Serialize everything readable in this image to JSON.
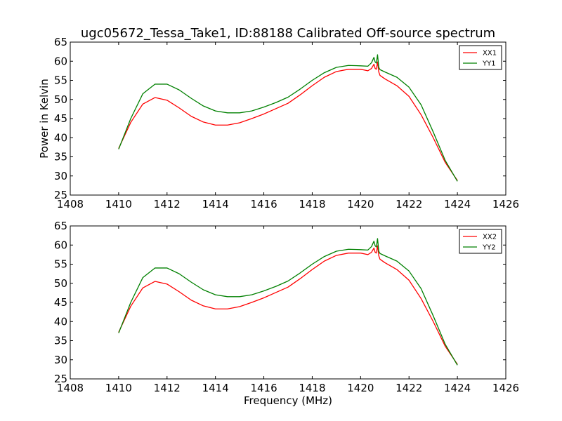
{
  "title": "ugc05672_Tessa_Take1, ID:88188 Calibrated Off-source spectrum",
  "chart_data": [
    {
      "type": "line",
      "ylabel": "Power in Kelvin",
      "xlabel": "",
      "xlim": [
        1408,
        1426
      ],
      "ylim": [
        25,
        65
      ],
      "xticks": [
        1408,
        1410,
        1412,
        1414,
        1416,
        1418,
        1420,
        1422,
        1424,
        1426
      ],
      "yticks": [
        25,
        30,
        35,
        40,
        45,
        50,
        55,
        60,
        65
      ],
      "legend_position": "top-right",
      "series": [
        {
          "name": "XX1",
          "color": "#ff0000",
          "x": [
            1410.0,
            1410.5,
            1411.0,
            1411.5,
            1412.0,
            1412.5,
            1413.0,
            1413.5,
            1414.0,
            1414.5,
            1415.0,
            1415.5,
            1416.0,
            1416.5,
            1417.0,
            1417.5,
            1418.0,
            1418.5,
            1419.0,
            1419.5,
            1420.0,
            1420.3,
            1420.45,
            1420.55,
            1420.6,
            1420.65,
            1420.7,
            1420.75,
            1420.8,
            1421.0,
            1421.5,
            1422.0,
            1422.5,
            1423.0,
            1423.5,
            1424.0
          ],
          "y": [
            37.2,
            44.0,
            48.8,
            50.5,
            49.8,
            47.8,
            45.6,
            44.1,
            43.3,
            43.3,
            43.9,
            45.0,
            46.2,
            47.6,
            49.0,
            51.2,
            53.6,
            55.8,
            57.3,
            57.9,
            57.9,
            57.5,
            58.1,
            59.2,
            58.1,
            57.9,
            59.8,
            57.2,
            56.3,
            55.4,
            53.6,
            50.8,
            46.0,
            40.0,
            33.5,
            28.8
          ]
        },
        {
          "name": "YY1",
          "color": "#008000",
          "x": [
            1410.0,
            1410.5,
            1411.0,
            1411.5,
            1412.0,
            1412.5,
            1413.0,
            1413.5,
            1414.0,
            1414.5,
            1415.0,
            1415.5,
            1416.0,
            1416.5,
            1417.0,
            1417.5,
            1418.0,
            1418.5,
            1419.0,
            1419.5,
            1420.0,
            1420.3,
            1420.45,
            1420.55,
            1420.6,
            1420.65,
            1420.7,
            1420.75,
            1420.8,
            1421.0,
            1421.5,
            1422.0,
            1422.5,
            1423.0,
            1423.5,
            1424.0
          ],
          "y": [
            37.0,
            45.0,
            51.5,
            54.0,
            54.0,
            52.5,
            50.3,
            48.3,
            47.0,
            46.5,
            46.5,
            47.0,
            48.0,
            49.2,
            50.6,
            52.7,
            55.0,
            57.0,
            58.4,
            58.9,
            58.8,
            58.7,
            59.6,
            61.0,
            59.8,
            59.5,
            61.7,
            58.4,
            57.8,
            57.2,
            55.8,
            53.2,
            48.6,
            41.5,
            34.0,
            28.6
          ]
        }
      ]
    },
    {
      "type": "line",
      "ylabel": "",
      "xlabel": "Frequency (MHz)",
      "xlim": [
        1408,
        1426
      ],
      "ylim": [
        25,
        65
      ],
      "xticks": [
        1408,
        1410,
        1412,
        1414,
        1416,
        1418,
        1420,
        1422,
        1424,
        1426
      ],
      "yticks": [
        25,
        30,
        35,
        40,
        45,
        50,
        55,
        60,
        65
      ],
      "legend_position": "top-right",
      "series": [
        {
          "name": "XX2",
          "color": "#ff0000",
          "x": [
            1410.0,
            1410.5,
            1411.0,
            1411.5,
            1412.0,
            1412.5,
            1413.0,
            1413.5,
            1414.0,
            1414.5,
            1415.0,
            1415.5,
            1416.0,
            1416.5,
            1417.0,
            1417.5,
            1418.0,
            1418.5,
            1419.0,
            1419.5,
            1420.0,
            1420.3,
            1420.45,
            1420.55,
            1420.6,
            1420.65,
            1420.7,
            1420.75,
            1420.8,
            1421.0,
            1421.5,
            1422.0,
            1422.5,
            1423.0,
            1423.5,
            1424.0
          ],
          "y": [
            37.2,
            44.0,
            48.8,
            50.5,
            49.8,
            47.8,
            45.6,
            44.1,
            43.3,
            43.3,
            43.9,
            45.0,
            46.2,
            47.6,
            49.0,
            51.2,
            53.6,
            55.8,
            57.3,
            57.9,
            57.9,
            57.5,
            58.1,
            59.2,
            58.1,
            57.9,
            59.8,
            57.2,
            56.3,
            55.4,
            53.6,
            50.8,
            46.0,
            40.0,
            33.5,
            28.8
          ]
        },
        {
          "name": "YY2",
          "color": "#008000",
          "x": [
            1410.0,
            1410.5,
            1411.0,
            1411.5,
            1412.0,
            1412.5,
            1413.0,
            1413.5,
            1414.0,
            1414.5,
            1415.0,
            1415.5,
            1416.0,
            1416.5,
            1417.0,
            1417.5,
            1418.0,
            1418.5,
            1419.0,
            1419.5,
            1420.0,
            1420.3,
            1420.45,
            1420.55,
            1420.6,
            1420.65,
            1420.7,
            1420.75,
            1420.8,
            1421.0,
            1421.5,
            1422.0,
            1422.5,
            1423.0,
            1423.5,
            1424.0
          ],
          "y": [
            37.0,
            45.0,
            51.5,
            54.0,
            54.0,
            52.5,
            50.3,
            48.3,
            47.0,
            46.5,
            46.5,
            47.0,
            48.0,
            49.2,
            50.6,
            52.7,
            55.0,
            57.0,
            58.4,
            58.9,
            58.8,
            58.7,
            59.6,
            61.0,
            59.8,
            59.5,
            61.7,
            58.4,
            57.8,
            57.2,
            55.8,
            53.2,
            48.6,
            41.5,
            34.0,
            28.6
          ]
        }
      ]
    }
  ]
}
